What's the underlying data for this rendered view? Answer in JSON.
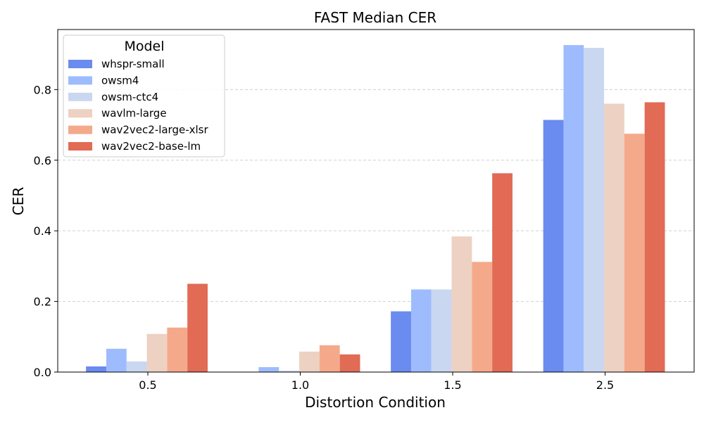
{
  "chart_data": {
    "type": "bar",
    "title": "FAST Median CER",
    "xlabel": "Distortion Condition",
    "ylabel": "CER",
    "categories": [
      "0.5",
      "1.0",
      "1.5",
      "2.5"
    ],
    "ylim": [
      0,
      0.97
    ],
    "yticks": [
      "0.0",
      "0.2",
      "0.4",
      "0.6",
      "0.8"
    ],
    "grid": "y-dashed",
    "legend": {
      "title": "Model",
      "placement": "top-left"
    },
    "series": [
      {
        "name": "whspr-small",
        "color": "#6a8bef",
        "values": [
          0.016,
          0.0,
          0.172,
          0.714
        ]
      },
      {
        "name": "owsm4",
        "color": "#9ebcfd",
        "values": [
          0.066,
          0.014,
          0.234,
          0.926
        ]
      },
      {
        "name": "owsm-ctc4",
        "color": "#c9d7f0",
        "values": [
          0.03,
          0.004,
          0.234,
          0.918
        ]
      },
      {
        "name": "wavlm-large",
        "color": "#edd1c3",
        "values": [
          0.108,
          0.058,
          0.384,
          0.76
        ]
      },
      {
        "name": "wav2vec2-large-xlsr",
        "color": "#f5a98b",
        "values": [
          0.126,
          0.076,
          0.312,
          0.675
        ]
      },
      {
        "name": "wav2vec2-base-lm",
        "color": "#e16b55",
        "values": [
          0.25,
          0.05,
          0.563,
          0.764
        ]
      }
    ]
  }
}
